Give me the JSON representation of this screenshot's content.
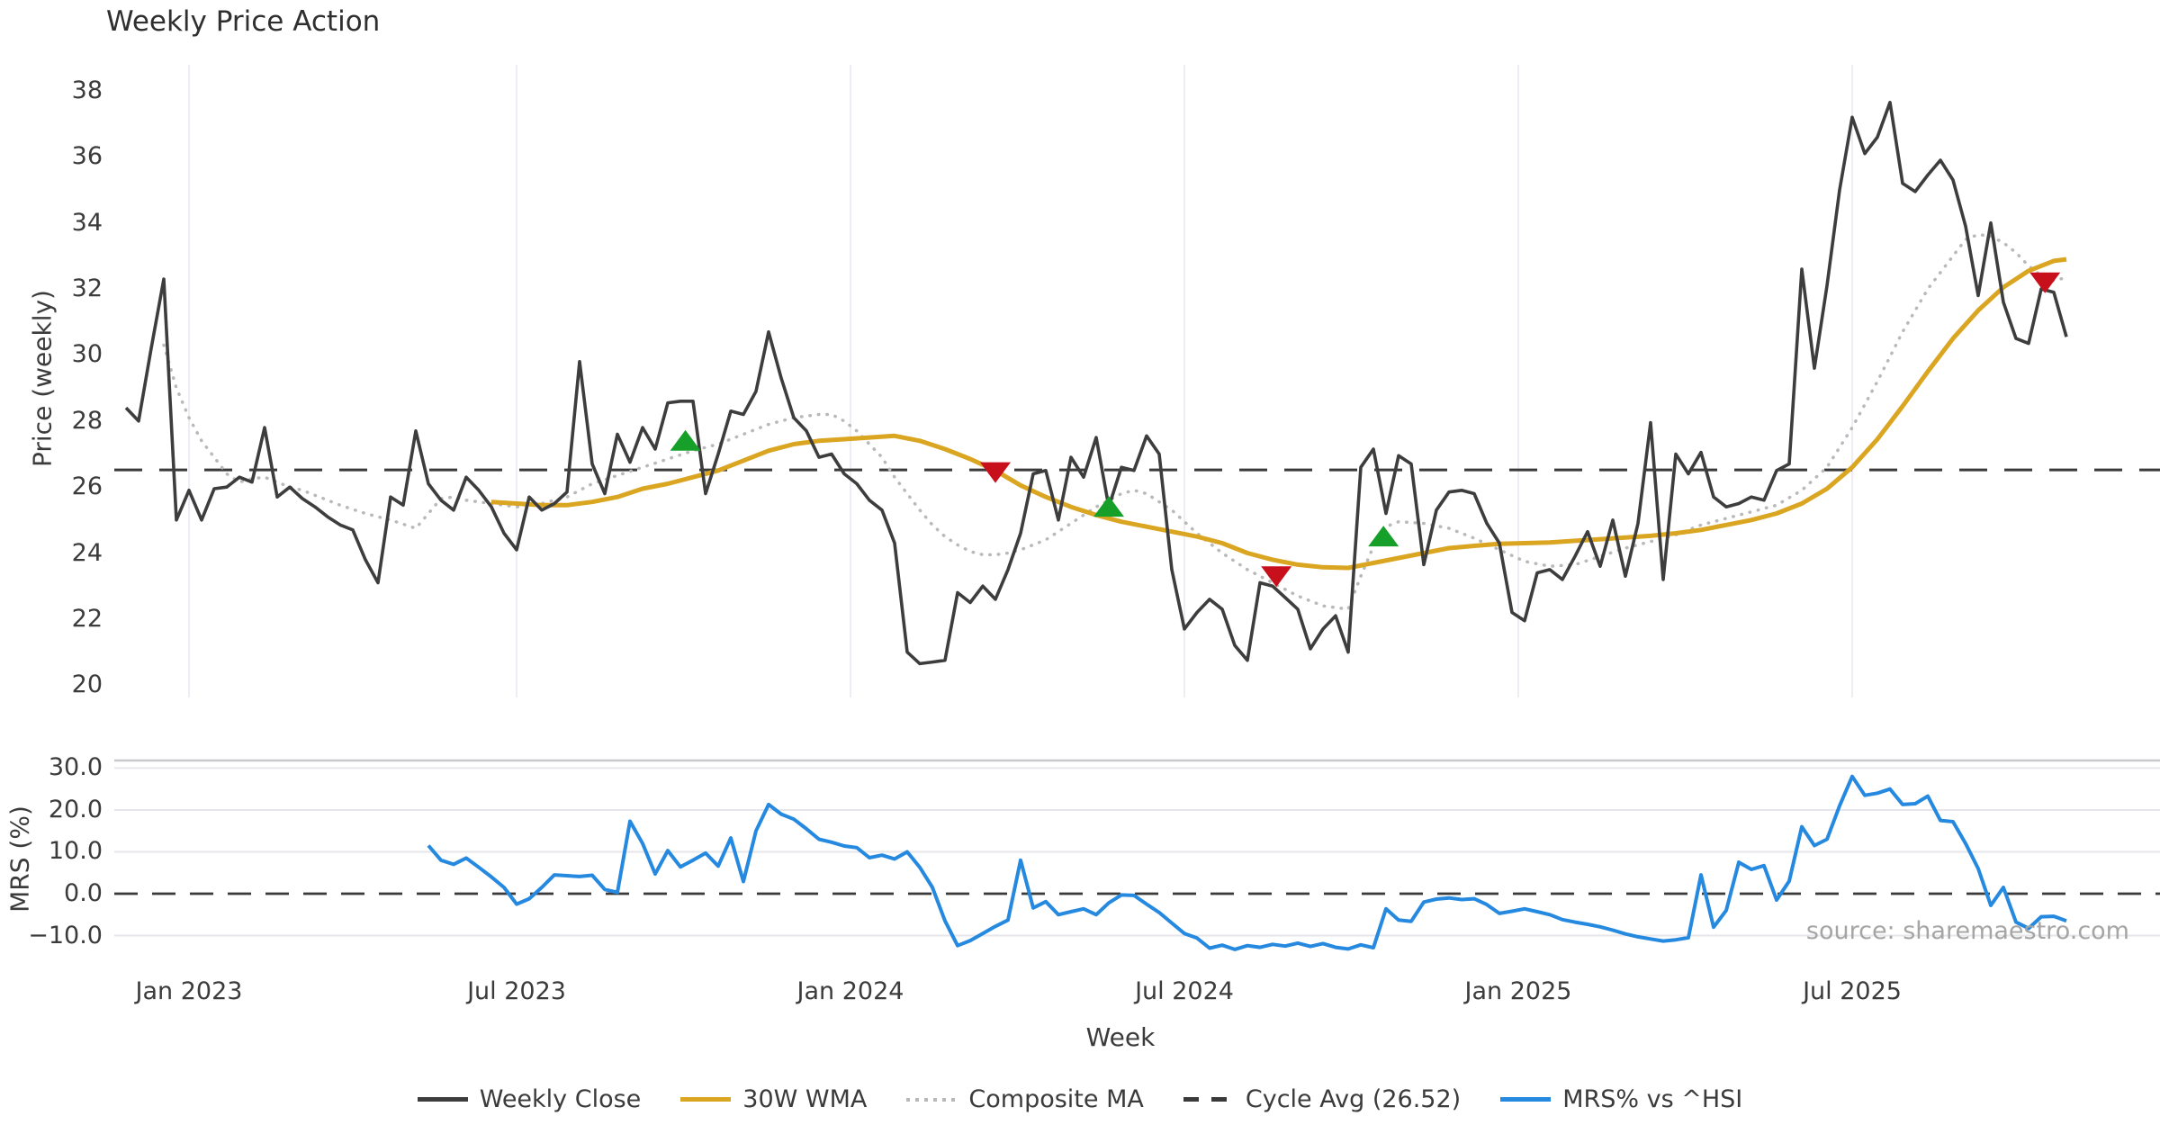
{
  "title": "Weekly Price Action",
  "source": "source: sharemaestro.com",
  "colors": {
    "background": "#ffffff",
    "close": "#3d3d3d",
    "wma": "#DAA520",
    "composite": "#b9b9b9",
    "dashed": "#3a3a3a",
    "mrs": "#2589e0",
    "buy": "#16a02a",
    "sell": "#c8101c",
    "grid_v": "#ededf3",
    "grid_h": "#e6e6eb",
    "grid_h_dark": "#c9c9cd",
    "text": "#3b3b3b"
  },
  "legend": [
    {
      "label": "Weekly Close",
      "color": "#3d3d3d",
      "style": "solid"
    },
    {
      "label": "30W WMA",
      "color": "#DAA520",
      "style": "solid"
    },
    {
      "label": "Composite MA",
      "color": "#b9b9b9",
      "style": "dotted"
    },
    {
      "label": "Cycle Avg (26.52)",
      "color": "#3a3a3a",
      "style": "dashed"
    },
    {
      "label": "MRS% vs ^HSI",
      "color": "#2589e0",
      "style": "solid"
    }
  ],
  "chart_data": [
    {
      "type": "line",
      "panel": "price",
      "title": "Weekly Price Action",
      "ylabel": "Price (weekly)",
      "ylim": [
        19.6,
        38.8
      ],
      "yticks": [
        38,
        36,
        34,
        32,
        30,
        28,
        26,
        24,
        22,
        20
      ],
      "grid": "vertical-only",
      "cycle_avg": 26.52,
      "x_unit": "weekly points starting late Nov 2022, 14px per week",
      "x_ticks": [
        {
          "week": 5,
          "label": "Jan 2023"
        },
        {
          "week": 31,
          "label": "Jul 2023"
        },
        {
          "week": 57.5,
          "label": "Jan 2024"
        },
        {
          "week": 84,
          "label": "Jul 2024"
        },
        {
          "week": 110.5,
          "label": "Jan 2025"
        },
        {
          "week": 137,
          "label": "Jul 2025"
        }
      ],
      "series": [
        {
          "name": "Weekly Close",
          "start_week": 0,
          "values": [
            28.4,
            28.0,
            30.2,
            32.3,
            25.0,
            25.9,
            25.0,
            25.95,
            26.0,
            26.3,
            26.15,
            27.8,
            25.7,
            26.0,
            25.65,
            25.4,
            25.1,
            24.85,
            24.7,
            23.8,
            23.1,
            25.7,
            25.45,
            27.7,
            26.1,
            25.6,
            25.3,
            26.3,
            25.9,
            25.4,
            24.6,
            24.1,
            25.7,
            25.3,
            25.5,
            25.85,
            29.8,
            26.7,
            25.8,
            27.6,
            26.75,
            27.8,
            27.15,
            28.55,
            28.6,
            28.6,
            25.8,
            27.0,
            28.3,
            28.2,
            28.9,
            30.7,
            29.3,
            28.1,
            27.7,
            26.9,
            27.0,
            26.4,
            26.1,
            25.6,
            25.3,
            24.3,
            21.0,
            20.65,
            20.7,
            20.75,
            22.8,
            22.5,
            23.0,
            22.6,
            23.5,
            24.6,
            26.4,
            26.5,
            25.0,
            26.9,
            26.3,
            27.5,
            25.4,
            26.6,
            26.5,
            27.55,
            27.0,
            23.5,
            21.7,
            22.2,
            22.6,
            22.3,
            21.2,
            20.75,
            23.1,
            23.0,
            22.65,
            22.3,
            21.1,
            21.7,
            22.1,
            21.0,
            26.6,
            27.15,
            25.2,
            26.95,
            26.7,
            23.65,
            25.3,
            25.85,
            25.9,
            25.8,
            24.9,
            24.3,
            22.2,
            21.95,
            23.4,
            23.5,
            23.2,
            23.9,
            24.65,
            23.6,
            25.0,
            23.3,
            24.9,
            27.95,
            23.2,
            27.0,
            26.4,
            27.05,
            25.7,
            25.4,
            25.5,
            25.7,
            25.6,
            26.5,
            26.7,
            32.6,
            29.6,
            32.1,
            35.0,
            37.2,
            36.1,
            36.6,
            37.65,
            35.2,
            34.95,
            35.45,
            35.9,
            35.3,
            33.9,
            31.8,
            34.0,
            31.6,
            30.5,
            30.35,
            32.0,
            31.9,
            30.55
          ]
        },
        {
          "name": "30W WMA",
          "anchors": [
            [
              29,
              25.55
            ],
            [
              31,
              25.5
            ],
            [
              33,
              25.45
            ],
            [
              35,
              25.45
            ],
            [
              37,
              25.55
            ],
            [
              39,
              25.7
            ],
            [
              41,
              25.95
            ],
            [
              43,
              26.1
            ],
            [
              45,
              26.3
            ],
            [
              47,
              26.5
            ],
            [
              49,
              26.8
            ],
            [
              51,
              27.1
            ],
            [
              53,
              27.3
            ],
            [
              55,
              27.4
            ],
            [
              57,
              27.45
            ],
            [
              59,
              27.5
            ],
            [
              61,
              27.55
            ],
            [
              63,
              27.4
            ],
            [
              65,
              27.15
            ],
            [
              67,
              26.85
            ],
            [
              69,
              26.5
            ],
            [
              71,
              26.05
            ],
            [
              73,
              25.7
            ],
            [
              75,
              25.4
            ],
            [
              77,
              25.15
            ],
            [
              79,
              24.95
            ],
            [
              81,
              24.8
            ],
            [
              83,
              24.65
            ],
            [
              85,
              24.5
            ],
            [
              87,
              24.3
            ],
            [
              89,
              24.0
            ],
            [
              91,
              23.8
            ],
            [
              93,
              23.65
            ],
            [
              95,
              23.57
            ],
            [
              97,
              23.55
            ],
            [
              99,
              23.7
            ],
            [
              101,
              23.85
            ],
            [
              103,
              24.0
            ],
            [
              105,
              24.15
            ],
            [
              107,
              24.22
            ],
            [
              109,
              24.28
            ],
            [
              111,
              24.3
            ],
            [
              113,
              24.32
            ],
            [
              115,
              24.37
            ],
            [
              117,
              24.42
            ],
            [
              119,
              24.47
            ],
            [
              121,
              24.52
            ],
            [
              123,
              24.6
            ],
            [
              125,
              24.7
            ],
            [
              127,
              24.85
            ],
            [
              129,
              25.0
            ],
            [
              131,
              25.2
            ],
            [
              133,
              25.5
            ],
            [
              135,
              25.95
            ],
            [
              137,
              26.6
            ],
            [
              139,
              27.45
            ],
            [
              141,
              28.45
            ],
            [
              143,
              29.5
            ],
            [
              145,
              30.5
            ],
            [
              147,
              31.35
            ],
            [
              149,
              32.05
            ],
            [
              151,
              32.55
            ],
            [
              153,
              32.85
            ],
            [
              154,
              32.9
            ]
          ]
        },
        {
          "name": "Composite MA",
          "anchors": [
            [
              3,
              30.3
            ],
            [
              4,
              29.0
            ],
            [
              5,
              28.1
            ],
            [
              6,
              27.4
            ],
            [
              7,
              26.9
            ],
            [
              8,
              26.4
            ],
            [
              9,
              26.15
            ],
            [
              10,
              26.25
            ],
            [
              11,
              26.3
            ],
            [
              12,
              26.15
            ],
            [
              13,
              26.0
            ],
            [
              14,
              25.9
            ],
            [
              15,
              25.75
            ],
            [
              16,
              25.6
            ],
            [
              17,
              25.45
            ],
            [
              19,
              25.2
            ],
            [
              21,
              25.0
            ],
            [
              23,
              24.75
            ],
            [
              24,
              25.2
            ],
            [
              25,
              25.65
            ],
            [
              26,
              25.7
            ],
            [
              27,
              25.6
            ],
            [
              29,
              25.5
            ],
            [
              31,
              25.4
            ],
            [
              33,
              25.5
            ],
            [
              35,
              25.7
            ],
            [
              37,
              26.1
            ],
            [
              39,
              26.35
            ],
            [
              41,
              26.6
            ],
            [
              43,
              26.85
            ],
            [
              45,
              27.1
            ],
            [
              47,
              27.3
            ],
            [
              49,
              27.6
            ],
            [
              51,
              27.9
            ],
            [
              53,
              28.1
            ],
            [
              55,
              28.2
            ],
            [
              56,
              28.2
            ],
            [
              57,
              28.0
            ],
            [
              58,
              27.7
            ],
            [
              59,
              27.3
            ],
            [
              60,
              26.9
            ],
            [
              61,
              26.3
            ],
            [
              62,
              25.8
            ],
            [
              63,
              25.3
            ],
            [
              64,
              24.85
            ],
            [
              65,
              24.5
            ],
            [
              66,
              24.25
            ],
            [
              67,
              24.05
            ],
            [
              68,
              23.95
            ],
            [
              69,
              23.95
            ],
            [
              70,
              24.0
            ],
            [
              71,
              24.1
            ],
            [
              73,
              24.4
            ],
            [
              75,
              24.9
            ],
            [
              77,
              25.4
            ],
            [
              79,
              25.8
            ],
            [
              80,
              25.9
            ],
            [
              81,
              25.8
            ],
            [
              83,
              25.3
            ],
            [
              85,
              24.6
            ],
            [
              87,
              24.0
            ],
            [
              89,
              23.5
            ],
            [
              91,
              23.1
            ],
            [
              93,
              22.7
            ],
            [
              95,
              22.4
            ],
            [
              97,
              22.3
            ],
            [
              98,
              23.3
            ],
            [
              99,
              24.2
            ],
            [
              100,
              24.8
            ],
            [
              101,
              24.95
            ],
            [
              103,
              24.9
            ],
            [
              105,
              24.75
            ],
            [
              107,
              24.45
            ],
            [
              109,
              24.1
            ],
            [
              111,
              23.75
            ],
            [
              113,
              23.6
            ],
            [
              115,
              23.65
            ],
            [
              117,
              23.9
            ],
            [
              119,
              24.15
            ],
            [
              121,
              24.35
            ],
            [
              123,
              24.55
            ],
            [
              125,
              24.85
            ],
            [
              127,
              25.05
            ],
            [
              129,
              25.25
            ],
            [
              131,
              25.45
            ],
            [
              133,
              25.9
            ],
            [
              135,
              26.6
            ],
            [
              137,
              27.8
            ],
            [
              139,
              29.2
            ],
            [
              141,
              30.7
            ],
            [
              143,
              32.0
            ],
            [
              145,
              33.0
            ],
            [
              146,
              33.5
            ],
            [
              147,
              33.65
            ],
            [
              148,
              33.6
            ],
            [
              149,
              33.4
            ],
            [
              150,
              33.1
            ],
            [
              151,
              32.7
            ],
            [
              152,
              32.4
            ],
            [
              153,
              32.25
            ],
            [
              154,
              32.35
            ]
          ]
        }
      ],
      "markers": {
        "buy": [
          [
            44.4,
            27.4
          ],
          [
            78,
            25.4
          ],
          [
            99.8,
            24.5
          ]
        ],
        "sell": [
          [
            69,
            26.45
          ],
          [
            91.3,
            23.3
          ],
          [
            152.3,
            32.2
          ]
        ]
      }
    },
    {
      "type": "line",
      "panel": "mrs",
      "ylabel": "MRS (%)",
      "xlabel": "Week",
      "ylim": [
        -15.5,
        32
      ],
      "yticks": [
        {
          "value": 30,
          "label": "30.0"
        },
        {
          "value": 20,
          "label": "20.0"
        },
        {
          "value": 10,
          "label": "10.0"
        },
        {
          "value": 0,
          "label": "0.0"
        },
        {
          "value": -10,
          "label": "−10.0"
        }
      ],
      "zero_line": 0,
      "series": [
        {
          "name": "MRS% vs ^HSI",
          "start_week": 24,
          "values": [
            11.5,
            8.0,
            7.0,
            8.5,
            6.3,
            4.0,
            1.5,
            -2.5,
            -1.2,
            1.5,
            4.5,
            4.3,
            4.1,
            4.4,
            1.0,
            0.3,
            17.3,
            12.0,
            4.7,
            10.3,
            6.4,
            8.0,
            9.7,
            6.6,
            13.3,
            2.9,
            15.0,
            21.3,
            19.0,
            17.8,
            15.5,
            13.0,
            12.3,
            11.4,
            11.0,
            8.6,
            9.2,
            8.3,
            10.0,
            6.3,
            1.5,
            -6.5,
            -12.4,
            -11.2,
            -9.5,
            -7.8,
            -6.3,
            8.0,
            -3.4,
            -1.9,
            -5.0,
            -4.3,
            -3.6,
            -5.0,
            -2.2,
            -0.3,
            -0.4,
            -2.5,
            -4.5,
            -7.0,
            -9.5,
            -10.6,
            -13.0,
            -12.3,
            -13.3,
            -12.4,
            -12.8,
            -12.1,
            -12.5,
            -11.8,
            -12.6,
            -11.9,
            -12.8,
            -13.2,
            -12.2,
            -12.9,
            -3.6,
            -6.3,
            -6.6,
            -2.0,
            -1.3,
            -1.0,
            -1.4,
            -1.2,
            -2.6,
            -4.7,
            -4.2,
            -3.6,
            -4.3,
            -5.0,
            -6.2,
            -6.8,
            -7.3,
            -7.9,
            -8.7,
            -9.6,
            -10.3,
            -10.8,
            -11.3,
            -11.0,
            -10.5,
            4.5,
            -8.0,
            -4.0,
            7.5,
            5.8,
            6.7,
            -1.5,
            3.0,
            16.0,
            11.5,
            13.0,
            21.0,
            28.0,
            23.5,
            24.0,
            25.0,
            21.3,
            21.5,
            23.3,
            17.5,
            17.2,
            12.0,
            6.0,
            -2.8,
            1.5,
            -6.8,
            -8.3,
            -5.5,
            -5.4,
            -6.5
          ]
        }
      ]
    }
  ]
}
